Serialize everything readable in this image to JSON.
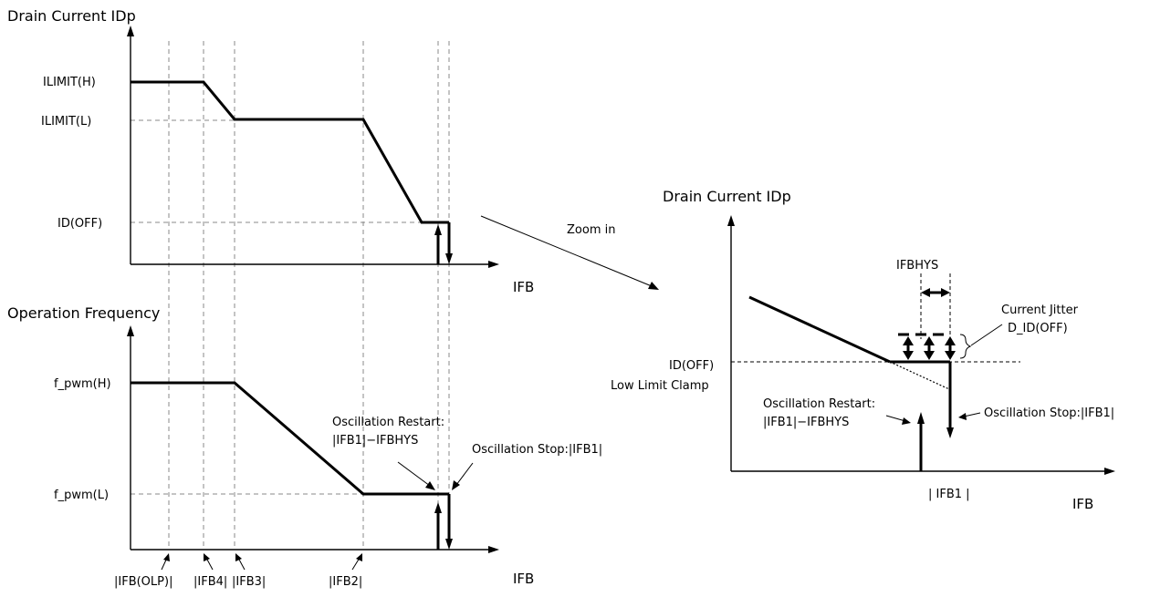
{
  "top_plot": {
    "y_axis_title": "Drain Current IDp",
    "x_axis_title": "IFB",
    "levels": [
      "ILIMIT(H)",
      "ILIMIT(L)",
      "ID(OFF)"
    ]
  },
  "bottom_plot": {
    "y_axis_title": "Operation Frequency",
    "x_axis_title": "IFB",
    "levels": [
      "f_pwm(H)",
      "f_pwm(L)"
    ],
    "restart_label": "Oscillation Restart:",
    "restart_value": "|IFB1|−IFBHYS",
    "stop_label": "Oscillation Stop:|IFB1|",
    "x_markers": [
      "|IFB(OLP)|",
      "|IFB4|",
      "|IFB3|",
      "|IFB2|"
    ]
  },
  "zoom_label": "Zoom in",
  "zoom_plot": {
    "y_axis_title": "Drain Current IDp",
    "x_axis_title": "IFB",
    "hys_label": "IFBHYS",
    "jitter_label_1": "Current Jitter",
    "jitter_label_2": "D_ID(OFF)",
    "id_off_label": "ID(OFF)",
    "clamp_label": "Low Limit Clamp",
    "restart_label": "Oscillation Restart:",
    "restart_value": "|IFB1|−IFBHYS",
    "stop_label": "Oscillation Stop:|IFB1|",
    "x_marker": "| IFB1 |"
  }
}
